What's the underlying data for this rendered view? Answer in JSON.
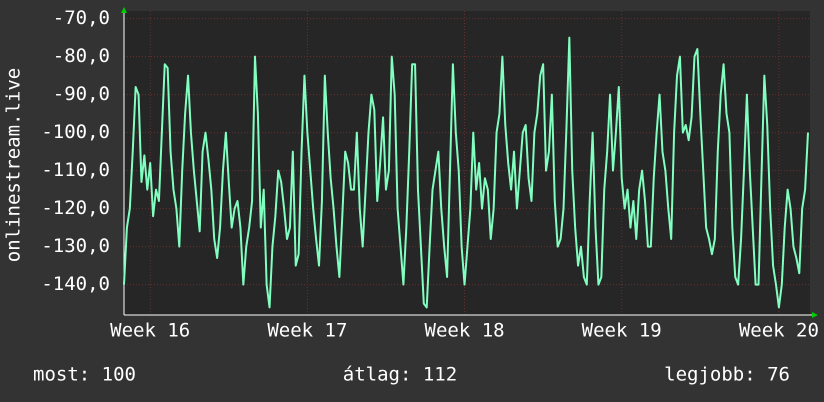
{
  "chart_data": {
    "type": "line",
    "y_label": "onlinestream.live",
    "categories": [
      null,
      null,
      null,
      null,
      null,
      null,
      null,
      null,
      null,
      "Week 16",
      null,
      null,
      null,
      null,
      null,
      null,
      null,
      null,
      null,
      null,
      null,
      null,
      null,
      null,
      null,
      null,
      null,
      null,
      null,
      null,
      null,
      null,
      null,
      null,
      null,
      null,
      null,
      null,
      null,
      null,
      null,
      null,
      null,
      null,
      null,
      null,
      null,
      null,
      null,
      null,
      null,
      null,
      null,
      null,
      null,
      null,
      null,
      null,
      null,
      null,
      null,
      null,
      null,
      "Week 17",
      null,
      null,
      null,
      null,
      null,
      null,
      null,
      null,
      null,
      null,
      null,
      null,
      null,
      null,
      null,
      null,
      null,
      null,
      null,
      null,
      null,
      null,
      null,
      null,
      null,
      null,
      null,
      null,
      null,
      null,
      null,
      null,
      null,
      null,
      null,
      null,
      null,
      null,
      null,
      null,
      null,
      null,
      null,
      null,
      null,
      null,
      null,
      null,
      null,
      null,
      null,
      null,
      null,
      "Week 18",
      null,
      null,
      null,
      null,
      null,
      null,
      null,
      null,
      null,
      null,
      null,
      null,
      null,
      null,
      null,
      null,
      null,
      null,
      null,
      null,
      null,
      null,
      null,
      null,
      null,
      null,
      null,
      null,
      null,
      null,
      null,
      null,
      null,
      null,
      null,
      null,
      null,
      null,
      null,
      null,
      null,
      null,
      null,
      null,
      null,
      null,
      null,
      null,
      null,
      null,
      null,
      null,
      null,
      "Week 19",
      null,
      null,
      null,
      null,
      null,
      null,
      null,
      null,
      null,
      null,
      null,
      null,
      null,
      null,
      null,
      null,
      null,
      null,
      null,
      null,
      null,
      null,
      null,
      null,
      null,
      null,
      null,
      null,
      null,
      null,
      null,
      null,
      null,
      null,
      null,
      null,
      null,
      null,
      null,
      null,
      null,
      null,
      null,
      null,
      null,
      null,
      null,
      null,
      null,
      null,
      null,
      null,
      null,
      "Week 20",
      null,
      null,
      null,
      null,
      null,
      null,
      null,
      null,
      null,
      null
    ],
    "series": [
      {
        "color": "#80ffc0",
        "values": [
          -140,
          -125,
          -120,
          -105,
          -88,
          -90,
          -113,
          -106,
          -115,
          -108,
          -122,
          -115,
          -118,
          -100,
          -82,
          -83,
          -105,
          -115,
          -120,
          -130,
          -110,
          -95,
          -85,
          -100,
          -110,
          -118,
          -126,
          -105,
          -100,
          -107,
          -115,
          -128,
          -133,
          -125,
          -110,
          -100,
          -113,
          -125,
          -120,
          -118,
          -125,
          -140,
          -130,
          -125,
          -118,
          -80,
          -95,
          -125,
          -115,
          -140,
          -146,
          -130,
          -122,
          -110,
          -113,
          -120,
          -128,
          -125,
          -105,
          -135,
          -132,
          -105,
          -85,
          -100,
          -110,
          -120,
          -128,
          -135,
          -118,
          -85,
          -100,
          -112,
          -120,
          -130,
          -138,
          -122,
          -105,
          -108,
          -115,
          -115,
          -100,
          -120,
          -130,
          -115,
          -100,
          -90,
          -94,
          -118,
          -108,
          -96,
          -115,
          -110,
          -80,
          -90,
          -120,
          -130,
          -140,
          -125,
          -105,
          -82,
          -82,
          -115,
          -130,
          -145,
          -146,
          -130,
          -115,
          -110,
          -105,
          -120,
          -130,
          -138,
          -110,
          -82,
          -100,
          -110,
          -130,
          -140,
          -130,
          -120,
          -100,
          -115,
          -108,
          -120,
          -112,
          -115,
          -128,
          -120,
          -100,
          -95,
          -80,
          -98,
          -108,
          -115,
          -105,
          -120,
          -110,
          -100,
          -98,
          -112,
          -118,
          -100,
          -95,
          -85,
          -82,
          -110,
          -105,
          -90,
          -118,
          -130,
          -128,
          -120,
          -99,
          -75,
          -110,
          -125,
          -135,
          -130,
          -138,
          -140,
          -118,
          -100,
          -125,
          -140,
          -138,
          -115,
          -105,
          -90,
          -110,
          -100,
          -88,
          -112,
          -120,
          -115,
          -125,
          -118,
          -128,
          -115,
          -110,
          -118,
          -130,
          -130,
          -112,
          -100,
          -90,
          -105,
          -110,
          -120,
          -128,
          -100,
          -85,
          -80,
          -100,
          -98,
          -102,
          -96,
          -80,
          -78,
          -95,
          -110,
          -125,
          -128,
          -132,
          -128,
          -105,
          -90,
          -82,
          -95,
          -100,
          -125,
          -138,
          -140,
          -128,
          -110,
          -90,
          -110,
          -125,
          -140,
          -140,
          -112,
          -85,
          -98,
          -120,
          -135,
          -140,
          -146,
          -140,
          -125,
          -115,
          -120,
          -130,
          -133,
          -137,
          -120,
          -115,
          -100
        ]
      }
    ],
    "ylim": [
      -148,
      -68
    ],
    "yticks": [
      {
        "value": -70,
        "label": "-70,0"
      },
      {
        "value": -80,
        "label": "-80,0"
      },
      {
        "value": -90,
        "label": "-90,0"
      },
      {
        "value": -100,
        "label": "-100,0"
      },
      {
        "value": -110,
        "label": "-110,0"
      },
      {
        "value": -120,
        "label": "-120,0"
      },
      {
        "value": -130,
        "label": "-130,0"
      },
      {
        "value": -140,
        "label": "-140,0"
      }
    ],
    "grid": true,
    "stats": [
      "most: 100",
      "átlag: 112",
      "legjobb: 76"
    ]
  }
}
